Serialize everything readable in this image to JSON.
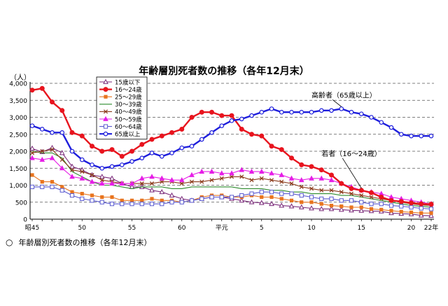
{
  "caption": {
    "marker": "○",
    "text": "年齢層別死者数の推移（各年12月末）"
  },
  "chart_data": {
    "type": "line",
    "title": "年齢層別死者数の推移（各年12月末）",
    "ylabel": "（人）",
    "ylim": [
      0,
      4000
    ],
    "yticks": [
      "0",
      "500",
      "1,000",
      "1,500",
      "2,000",
      "2,500",
      "3,000",
      "3,500",
      "4,000"
    ],
    "x": [
      1970,
      1971,
      1972,
      1973,
      1974,
      1975,
      1976,
      1977,
      1978,
      1979,
      1980,
      1981,
      1982,
      1983,
      1984,
      1985,
      1986,
      1987,
      1988,
      1989,
      1990,
      1991,
      1992,
      1993,
      1994,
      1995,
      1996,
      1997,
      1998,
      1999,
      2000,
      2001,
      2002,
      2003,
      2004,
      2005,
      2006,
      2007,
      2008,
      2009,
      2010
    ],
    "xticks": [
      {
        "x": 1970,
        "label": "昭45"
      },
      {
        "x": 1975,
        "label": "50"
      },
      {
        "x": 1980,
        "label": "55"
      },
      {
        "x": 1985,
        "label": "60"
      },
      {
        "x": 1989,
        "label": "平元"
      },
      {
        "x": 1993,
        "label": "5"
      },
      {
        "x": 1998,
        "label": "10"
      },
      {
        "x": 2003,
        "label": "15"
      },
      {
        "x": 2008,
        "label": "20"
      },
      {
        "x": 2010,
        "label": "22年"
      }
    ],
    "grid": "horizontal-dashed",
    "legend_position": "top-left",
    "series": [
      {
        "name": "15歳以下",
        "color": "#7a2a7a",
        "marker": "triangle-open",
        "values": [
          2080,
          1980,
          2100,
          1950,
          1550,
          1450,
          1300,
          1250,
          1200,
          1050,
          950,
          950,
          850,
          800,
          700,
          600,
          550,
          600,
          650,
          650,
          600,
          550,
          500,
          480,
          450,
          400,
          380,
          350,
          320,
          300,
          300,
          280,
          260,
          250,
          240,
          230,
          180,
          160,
          150,
          110,
          100
        ]
      },
      {
        "name": "16～24歳",
        "color": "#e8141e",
        "marker": "circle-filled",
        "bold": true,
        "values": [
          3800,
          3850,
          3450,
          3200,
          2550,
          2450,
          2150,
          2000,
          2050,
          1850,
          2000,
          2200,
          2350,
          2450,
          2550,
          2650,
          3000,
          3150,
          3150,
          3050,
          3050,
          2650,
          2500,
          2450,
          2150,
          2050,
          1800,
          1600,
          1550,
          1450,
          1300,
          1050,
          900,
          850,
          780,
          650,
          550,
          520,
          480,
          450,
          440
        ]
      },
      {
        "name": "25～29歳",
        "color": "#e8741e",
        "marker": "square-filled",
        "values": [
          1300,
          1100,
          1100,
          950,
          800,
          750,
          700,
          650,
          650,
          550,
          550,
          550,
          600,
          550,
          550,
          500,
          550,
          650,
          700,
          700,
          650,
          650,
          700,
          650,
          650,
          600,
          550,
          500,
          500,
          450,
          400,
          380,
          350,
          350,
          300,
          280,
          250,
          220,
          200,
          180,
          180
        ]
      },
      {
        "name": "30～39歳",
        "color": "#2e8b2e",
        "marker": "none",
        "values": [
          2000,
          1950,
          1950,
          1800,
          1400,
          1250,
          1100,
          1000,
          1000,
          950,
          900,
          950,
          950,
          950,
          900,
          900,
          950,
          950,
          950,
          950,
          950,
          900,
          900,
          900,
          850,
          850,
          800,
          800,
          750,
          750,
          750,
          700,
          700,
          650,
          600,
          550,
          500,
          450,
          400,
          380,
          350
        ]
      },
      {
        "name": "40～49歳",
        "color": "#8b3a1a",
        "marker": "x",
        "values": [
          1950,
          2000,
          2050,
          1750,
          1450,
          1400,
          1300,
          1150,
          1100,
          1050,
          1050,
          1050,
          1050,
          1100,
          1100,
          1050,
          1100,
          1100,
          1150,
          1200,
          1250,
          1250,
          1150,
          1200,
          1150,
          1100,
          1050,
          950,
          900,
          850,
          850,
          800,
          750,
          700,
          650,
          600,
          550,
          500,
          450,
          420,
          400
        ]
      },
      {
        "name": "50～59歳",
        "color": "#e61ee6",
        "marker": "triangle-filled",
        "values": [
          1800,
          1750,
          1800,
          1500,
          1250,
          1200,
          1100,
          1050,
          1050,
          1050,
          1050,
          1200,
          1250,
          1200,
          1150,
          1150,
          1300,
          1400,
          1400,
          1350,
          1350,
          1450,
          1400,
          1400,
          1350,
          1300,
          1200,
          1150,
          1200,
          1200,
          1150,
          1050,
          950,
          850,
          800,
          750,
          650,
          600,
          550,
          500,
          450
        ]
      },
      {
        "name": "60～64歳",
        "color": "#5a5ad0",
        "marker": "square-open",
        "values": [
          950,
          950,
          950,
          850,
          700,
          600,
          550,
          500,
          450,
          450,
          450,
          450,
          450,
          450,
          500,
          500,
          550,
          600,
          650,
          650,
          650,
          700,
          750,
          800,
          800,
          750,
          750,
          700,
          650,
          600,
          600,
          550,
          550,
          500,
          450,
          450,
          400,
          380,
          350,
          320,
          300
        ]
      },
      {
        "name": "65歳以上",
        "color": "#1e1edc",
        "marker": "circle-open",
        "bold": true,
        "values": [
          2750,
          2650,
          2550,
          2550,
          2000,
          1750,
          1600,
          1500,
          1550,
          1600,
          1700,
          1800,
          1950,
          1850,
          1950,
          2100,
          2150,
          2350,
          2550,
          2750,
          2900,
          2950,
          3050,
          3150,
          3250,
          3150,
          3150,
          3150,
          3150,
          3200,
          3200,
          3250,
          3150,
          3100,
          3000,
          2850,
          2700,
          2500,
          2450,
          2450,
          2450
        ]
      }
    ],
    "annotations": [
      {
        "text": "高齢者（65歳以上）",
        "x": 1998,
        "y": 3580,
        "series": "65歳以上"
      },
      {
        "text": "若者（16～24歳）",
        "x": 1999,
        "y": 1860,
        "series": "16～24歳"
      }
    ]
  }
}
